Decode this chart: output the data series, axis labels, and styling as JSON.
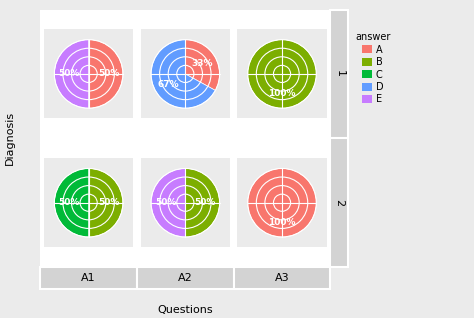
{
  "title_x": "Questions",
  "title_y": "Diagnosis",
  "cols": [
    "A1",
    "A2",
    "A3"
  ],
  "rows": [
    "1",
    "2"
  ],
  "colors": {
    "A": "#F8766D",
    "B": "#7CAE00",
    "C": "#00BA38",
    "D": "#619CFF",
    "E": "#C77CFF"
  },
  "legend_colors": {
    "A": "#F8766D",
    "B": "#7CAE00",
    "C": "#00BA38",
    "D": "#619CFF",
    "E": "#C77CFF"
  },
  "pie_data": [
    [
      {
        "slices": [
          [
            "A",
            50
          ],
          [
            "E",
            50
          ]
        ]
      },
      {
        "slices": [
          [
            "A",
            33
          ],
          [
            "D",
            67
          ]
        ]
      },
      {
        "slices": [
          [
            "B",
            100
          ]
        ]
      }
    ],
    [
      {
        "slices": [
          [
            "B",
            50
          ],
          [
            "C",
            50
          ]
        ]
      },
      {
        "slices": [
          [
            "B",
            50
          ],
          [
            "E",
            50
          ]
        ]
      },
      {
        "slices": [
          [
            "A",
            100
          ]
        ]
      }
    ]
  ],
  "bg_color": "#EBEBEB",
  "panel_bg": "#EBEBEB",
  "cell_bg": "#EBEBEB",
  "strip_bg": "#D3D3D3",
  "separator_color": "#FFFFFF",
  "font_size_pct": 6.5,
  "font_size_axis": 8,
  "font_size_strip": 7,
  "legend_title": "answer",
  "legend_fontsize": 7
}
